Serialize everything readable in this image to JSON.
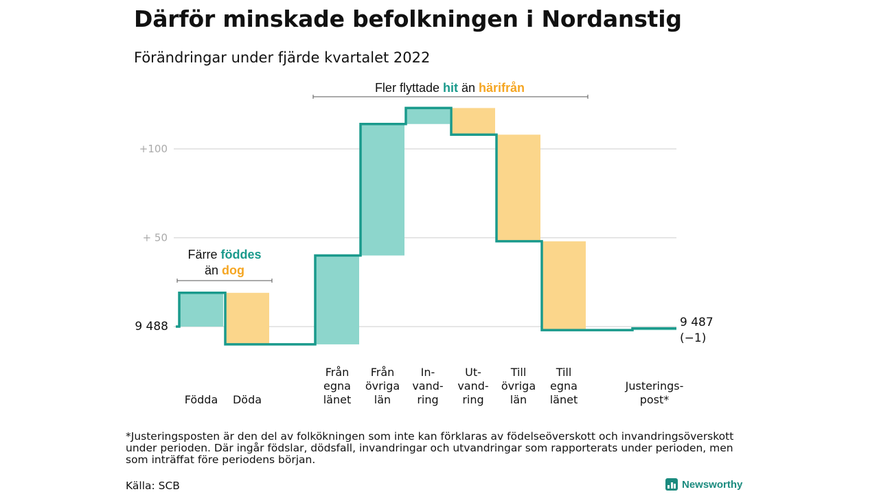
{
  "title": "Därför minskade befolkningen i Nordanstig",
  "subtitle": "Förändringar under fjärde kvartalet 2022",
  "chart_data": {
    "type": "waterfall",
    "start": {
      "value": 9488,
      "label": "9 488"
    },
    "end": {
      "value": 9487,
      "label": "9 487",
      "change_label": "(−1)"
    },
    "ylim": [
      9476,
      9530
    ],
    "yticks": [
      {
        "value": 9538,
        "label": "+100"
      },
      {
        "value": 9538,
        "label": "+100"
      }
    ],
    "yticks_fixed": [
      {
        "value": 9538,
        "label": "+100"
      },
      {
        "value": 9538,
        "label": "+100"
      }
    ],
    "steps": [
      {
        "lines": [
          "Födda"
        ],
        "delta": 19,
        "color": "pos"
      },
      {
        "lines": [
          "Döda"
        ],
        "delta": -29,
        "color": "neg"
      },
      {
        "lines": [
          "Från",
          "egna",
          "länet"
        ],
        "delta": 50,
        "color": "pos"
      },
      {
        "lines": [
          "Från",
          "övriga",
          "län"
        ],
        "delta": 74,
        "color": "pos"
      },
      {
        "lines": [
          "In-",
          "vand-",
          "ring"
        ],
        "delta": 9,
        "color": "pos"
      },
      {
        "lines": [
          "Ut-",
          "vand-",
          "ring"
        ],
        "delta": -15,
        "color": "neg"
      },
      {
        "lines": [
          "Till",
          "övriga",
          "län"
        ],
        "delta": -60,
        "color": "neg"
      },
      {
        "lines": [
          "Till",
          "egna",
          "länet"
        ],
        "delta": -50,
        "color": "neg"
      },
      {
        "lines": [
          "Justerings-",
          "post*"
        ],
        "delta": 1,
        "color": "pos"
      }
    ],
    "annotations": [
      {
        "parts": [
          [
            "Färre ",
            ""
          ],
          [
            "föddes",
            "pos"
          ]
        ],
        "line2": [
          [
            "än ",
            ""
          ],
          [
            "dog",
            "neg"
          ]
        ]
      },
      {
        "parts": [
          [
            "Fler flyttade ",
            ""
          ],
          [
            "hit",
            "pos"
          ],
          [
            " än ",
            ""
          ],
          [
            "härifrån",
            "neg"
          ]
        ]
      }
    ],
    "colors": {
      "pos_fill": "#8dd6cc",
      "neg_fill": "#fbd68b",
      "line": "#1a9a8c",
      "grid": "#dddddd"
    }
  },
  "footnote": "*Justeringsposten är den del av folkökningen som inte kan förklaras av födelseöverskott och invandringsöverskott under perioden. Där ingår födslar, dödsfall, invandringar och utvandringar som rapporterats under perioden, men som inträffat före periodens början.",
  "source": "Källa: SCB",
  "brand": "Newsworthy"
}
